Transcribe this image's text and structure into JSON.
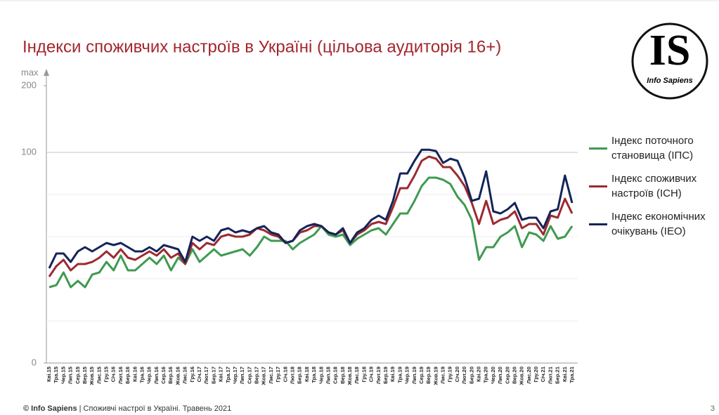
{
  "chart_data": {
    "type": "line",
    "title": "Індекси споживчих настроїв в Україні (цільова аудиторія 16+)",
    "y_max_label": "max",
    "categories": [
      "Кві.15",
      "Тра.15",
      "Чер.15",
      "Лип.15",
      "Сер.15",
      "Вер.15",
      "Жов.15",
      "Лис.15",
      "Гру.15",
      "Січ.16",
      "Лют.16",
      "Бер.16",
      "Кві.16",
      "Тра.16",
      "Чер.16",
      "Лип.16",
      "Сер.16",
      "Вер.16",
      "Жов.16",
      "Лис.16",
      "Гру.16",
      "Січ.17",
      "Лют.17",
      "Бер.17",
      "Кві.17",
      "Тра.17",
      "Чер.17",
      "Лип.17",
      "Сер.17",
      "Вер.17",
      "Жов.17",
      "Лис.17",
      "Гру.17",
      "Січ.18",
      "Лют.18",
      "Бер.18",
      "Кві.18",
      "Тра.18",
      "Чер.18",
      "Лип.18",
      "Сер.18",
      "Вер.18",
      "Жов.18",
      "Лис.18",
      "Гру.18",
      "Січ.19",
      "Лют.19",
      "Бер.19",
      "Кві.19",
      "Тра.19",
      "Чер.19",
      "Лип.19",
      "Сер.19",
      "Вер.19",
      "Жов.19",
      "Лис.19",
      "Гру.19",
      "Січ.20",
      "Лют.20",
      "Бер.20",
      "Кві.20",
      "Тра.20",
      "Чер.20",
      "Лип.20",
      "Сер.20",
      "Вер.20",
      "Жов.20",
      "Лис.20",
      "Гру.20",
      "Січ.21",
      "Лют.21",
      "Бер.21",
      "Кві.21",
      "Тра.21"
    ],
    "series": [
      {
        "name": "Індекс поточного становища (ІПС)",
        "color": "#3f9a51",
        "values": [
          36,
          37,
          43,
          36,
          39,
          36,
          42,
          43,
          48,
          44,
          51,
          44,
          44,
          47,
          50,
          47,
          51,
          44,
          50,
          47,
          54,
          48,
          51,
          54,
          51,
          52,
          53,
          54,
          51,
          55,
          60,
          58,
          58,
          58,
          54,
          57,
          59,
          61,
          65,
          61,
          60,
          61,
          56,
          59,
          61,
          63,
          64,
          61,
          66,
          71,
          71,
          77,
          84,
          88,
          88,
          87,
          85,
          79,
          75,
          68,
          49,
          55,
          55,
          60,
          62,
          65,
          55,
          62,
          61,
          58,
          65,
          59,
          60,
          65
        ]
      },
      {
        "name": "Індекс споживчих настроїв (ІСН)",
        "color": "#9c2a30",
        "values": [
          41,
          46,
          49,
          44,
          47,
          47,
          48,
          50,
          53,
          50,
          54,
          50,
          49,
          51,
          53,
          51,
          54,
          50,
          52,
          47,
          57,
          54,
          57,
          56,
          60,
          61,
          60,
          60,
          61,
          64,
          63,
          61,
          60,
          57,
          58,
          62,
          63,
          65,
          65,
          62,
          61,
          63,
          57,
          61,
          63,
          66,
          67,
          66,
          74,
          83,
          83,
          89,
          96,
          98,
          97,
          93,
          93,
          89,
          84,
          76,
          66,
          77,
          66,
          68,
          69,
          72,
          64,
          66,
          66,
          61,
          70,
          69,
          78,
          71
        ]
      },
      {
        "name": "Індекс економічних очікувань (ІЕО)",
        "color": "#14245a",
        "values": [
          45,
          52,
          52,
          48,
          53,
          55,
          53,
          55,
          57,
          56,
          57,
          55,
          53,
          53,
          55,
          53,
          56,
          55,
          54,
          48,
          60,
          58,
          60,
          58,
          63,
          64,
          62,
          63,
          62,
          64,
          65,
          62,
          61,
          57,
          58,
          63,
          65,
          66,
          65,
          62,
          61,
          64,
          57,
          62,
          64,
          68,
          70,
          68,
          77,
          90,
          90,
          96,
          104,
          104,
          102,
          95,
          97,
          96,
          88,
          77,
          78,
          91,
          72,
          71,
          73,
          76,
          68,
          69,
          69,
          64,
          72,
          73,
          89,
          76
        ]
      }
    ],
    "ylim": [
      0,
      200
    ],
    "yticks": [
      0,
      100,
      200
    ],
    "minor_grid": [
      20,
      40,
      60,
      80
    ],
    "grid": true,
    "legend": "right"
  },
  "logo": {
    "mark": "IS",
    "name": "Info Sapiens"
  },
  "footer": {
    "brand": "© Info Sapiens",
    "separator": "|",
    "text": "Споживчі настрої в Україні. Травень 2021",
    "page": "3"
  }
}
